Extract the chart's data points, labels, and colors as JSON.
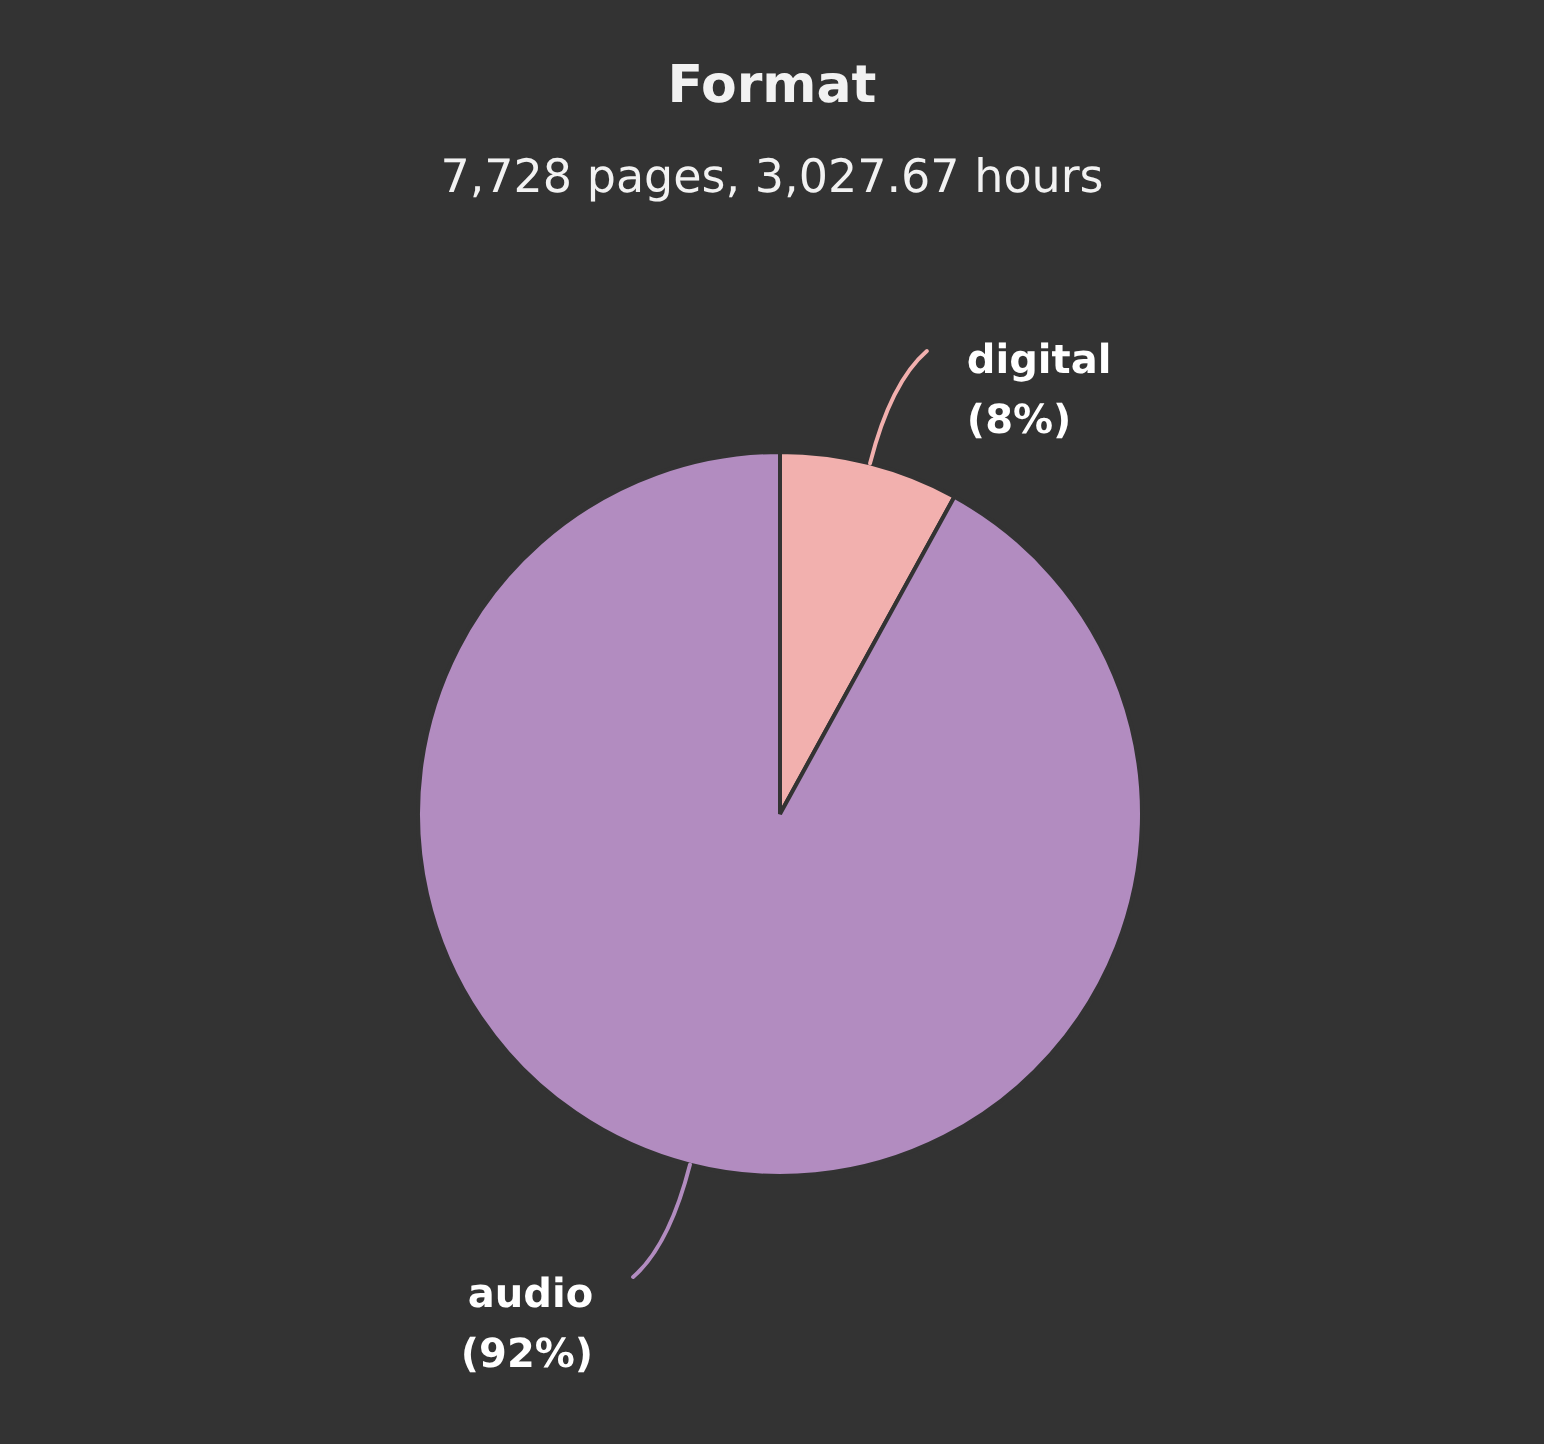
{
  "chart_data": {
    "type": "pie",
    "title": "Format",
    "subtitle": "7,728 pages, 3,027.67 hours",
    "categories": [
      "digital",
      "audio"
    ],
    "values": [
      8,
      92
    ],
    "colors": [
      "#f2b0ae",
      "#b28cc0"
    ],
    "value_labels": [
      "(8%)",
      "(92%)"
    ],
    "legend": false
  }
}
